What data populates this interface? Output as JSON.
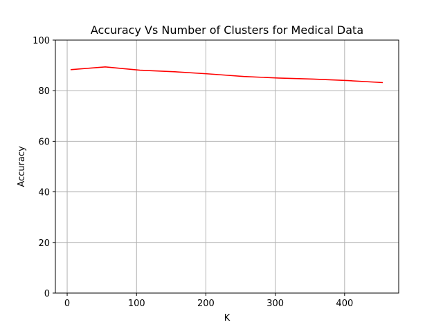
{
  "chart_data": {
    "type": "line",
    "title": "Accuracy Vs Number of Clusters for Medical Data",
    "xlabel": "K",
    "ylabel": "Accuracy",
    "xlim": [
      -17,
      478
    ],
    "ylim": [
      0,
      100
    ],
    "xticks": [
      0,
      100,
      200,
      300,
      400
    ],
    "yticks": [
      0,
      20,
      40,
      60,
      80,
      100
    ],
    "grid": true,
    "series": [
      {
        "color": "#ff0000",
        "x": [
          5,
          55,
          105,
          155,
          205,
          255,
          305,
          355,
          405,
          455
        ],
        "y": [
          88.3,
          89.4,
          88.1,
          87.5,
          86.6,
          85.6,
          85.0,
          84.6,
          84.0,
          83.2
        ]
      }
    ]
  }
}
